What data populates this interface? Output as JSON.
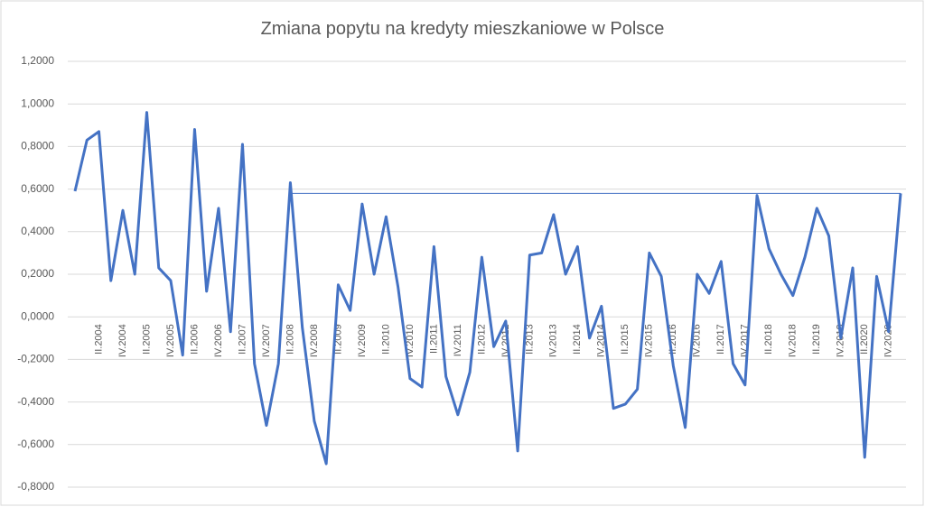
{
  "chart_data": {
    "type": "line",
    "title": "Zmiana popytu na kredyty mieszkaniowe w Polsce",
    "categories": [
      null,
      null,
      "II.2004",
      null,
      "IV.2004",
      null,
      "II.2005",
      null,
      "IV.2005",
      null,
      "II.2006",
      null,
      "IV.2006",
      null,
      "II.2007",
      null,
      "IV.2007",
      null,
      "II.2008",
      null,
      "IV.2008",
      null,
      "II.2009",
      null,
      "IV.2009",
      null,
      "II.2010",
      null,
      "IV.2010",
      null,
      "II.2011",
      null,
      "IV.2011",
      null,
      "II.2012",
      null,
      "IV.2012",
      null,
      "II.2013",
      null,
      "IV.2013",
      null,
      "II.2014",
      null,
      "IV.2014",
      null,
      "II.2015",
      null,
      "IV.2015",
      null,
      "II.2016",
      null,
      "IV.2016",
      null,
      "II.2017",
      null,
      "IV.2017",
      null,
      "II.2018",
      null,
      "IV.2018",
      null,
      "II.2019",
      null,
      "IV.2019",
      null,
      "II.2020",
      null,
      "IV.2020",
      null
    ],
    "series": [
      {
        "color": "#4472c4",
        "width": 3,
        "values": [
          0.59,
          0.83,
          0.87,
          0.17,
          0.5,
          0.2,
          0.96,
          0.23,
          0.17,
          -0.18,
          0.88,
          0.12,
          0.51,
          -0.07,
          0.81,
          -0.22,
          -0.51,
          -0.22,
          0.63,
          -0.05,
          -0.49,
          -0.69,
          0.15,
          0.03,
          0.53,
          0.2,
          0.47,
          0.14,
          -0.29,
          -0.33,
          0.33,
          -0.28,
          -0.46,
          -0.26,
          0.28,
          -0.14,
          -0.02,
          -0.63,
          0.29,
          0.3,
          0.48,
          0.2,
          0.33,
          -0.1,
          0.05,
          -0.43,
          -0.41,
          -0.34,
          0.3,
          0.19,
          -0.23,
          -0.52,
          0.2,
          0.11,
          0.26,
          -0.22,
          -0.32,
          0.57,
          0.32,
          0.2,
          0.1,
          0.28,
          0.51,
          0.38,
          -0.1,
          0.23,
          -0.66,
          0.19,
          -0.07,
          0.58
        ]
      },
      {
        "color": "#4472c4",
        "width": 1,
        "values": [
          null,
          null,
          null,
          null,
          null,
          null,
          null,
          null,
          null,
          null,
          null,
          null,
          null,
          null,
          null,
          null,
          null,
          null,
          0.58,
          0.58,
          0.58,
          0.58,
          0.58,
          0.58,
          0.58,
          0.58,
          0.58,
          0.58,
          0.58,
          0.58,
          0.58,
          0.58,
          0.58,
          0.58,
          0.58,
          0.58,
          0.58,
          0.58,
          0.58,
          0.58,
          0.58,
          0.58,
          0.58,
          0.58,
          0.58,
          0.58,
          0.58,
          0.58,
          0.58,
          0.58,
          0.58,
          0.58,
          0.58,
          0.58,
          0.58,
          0.58,
          0.58,
          0.58,
          0.58,
          0.58,
          0.58,
          0.58,
          0.58,
          0.58,
          0.58,
          0.58,
          0.58,
          0.58,
          0.58,
          0.58
        ]
      }
    ],
    "ylim": [
      -0.8,
      1.2
    ],
    "yticks": [
      {
        "value": -0.8,
        "label": "-0,8000"
      },
      {
        "value": -0.6,
        "label": "-0,6000"
      },
      {
        "value": -0.4,
        "label": "-0,4000"
      },
      {
        "value": -0.2,
        "label": "-0,2000"
      },
      {
        "value": 0,
        "label": "0,0000"
      },
      {
        "value": 0.2,
        "label": "0,2000"
      },
      {
        "value": 0.4,
        "label": "0,4000"
      },
      {
        "value": 0.6,
        "label": "0,6000"
      },
      {
        "value": 0.8,
        "label": "0,8000"
      },
      {
        "value": 1,
        "label": "1,0000"
      },
      {
        "value": 1.2,
        "label": "1,2000"
      }
    ],
    "grid": true
  }
}
